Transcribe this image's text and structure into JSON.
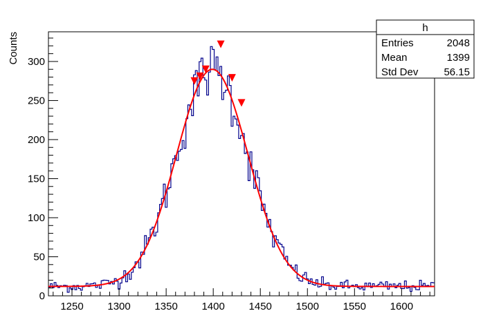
{
  "chart_data": {
    "type": "histogram",
    "title": "",
    "xlabel": "",
    "ylabel": "Counts",
    "xlim": [
      1225,
      1635
    ],
    "ylim": [
      0,
      338
    ],
    "x_ticks": [
      1250,
      1300,
      1350,
      1400,
      1450,
      1500,
      1550,
      1600
    ],
    "y_ticks": [
      0,
      50,
      100,
      150,
      200,
      250,
      300
    ],
    "grid": false,
    "legend": "none",
    "colors": {
      "histogram": "#00008b",
      "fit": "#ff0000",
      "markers": "#ff0000"
    },
    "histogram": {
      "name": "h",
      "bin_width": 2,
      "x_start": 1225,
      "x_end": 1635,
      "approx_shape": {
        "type": "gaussian_plus_constant",
        "mean": 1399,
        "sigma": 38,
        "amplitude": 278,
        "baseline": 12
      }
    },
    "fit": {
      "type": "gaussian_plus_constant",
      "mean": 1399,
      "sigma": 38,
      "amplitude": 278,
      "baseline": 12
    },
    "peak_markers": [
      {
        "x": 1380,
        "y": 275
      },
      {
        "x": 1386,
        "y": 281
      },
      {
        "x": 1392,
        "y": 290
      },
      {
        "x": 1408,
        "y": 322
      },
      {
        "x": 1420,
        "y": 279
      },
      {
        "x": 1430,
        "y": 247
      }
    ],
    "stats_box": {
      "title": "h",
      "rows": [
        {
          "label": "Entries",
          "value": "2048"
        },
        {
          "label": "Mean",
          "value": "1399"
        },
        {
          "label": "Std Dev",
          "value": "56.15"
        }
      ]
    }
  }
}
